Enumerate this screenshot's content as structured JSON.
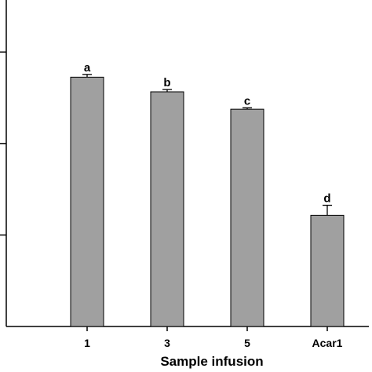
{
  "chart_data": {
    "type": "bar",
    "categories": [
      "1",
      "3",
      "5",
      "Acar1"
    ],
    "values": [
      5.45,
      5.13,
      4.75,
      2.43
    ],
    "errors": [
      0.06,
      0.05,
      0.03,
      0.22
    ],
    "significance_labels": [
      "a",
      "b",
      "c",
      "d"
    ],
    "title": "",
    "xlabel": "Sample infusion",
    "ylabel": "",
    "ylim": [
      0,
      7
    ],
    "y_ticks": [
      2,
      4,
      6
    ],
    "y_tick_labels_visible": false,
    "grid": false,
    "legend": "none",
    "bar_color": "#a0a0a0",
    "edge_color": "#000000"
  }
}
